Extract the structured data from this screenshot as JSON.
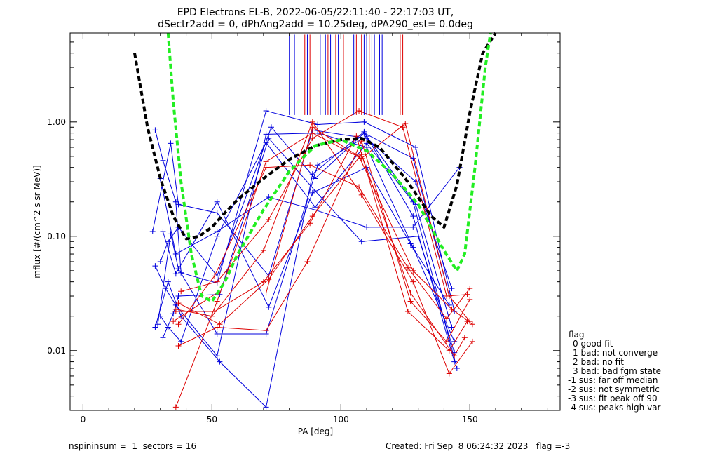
{
  "chart_data": {
    "type": "line",
    "title": "EPD Electrons EL-B, 2022-06-05/22:11:40 - 22:17:03 UT,",
    "subtitle": "dSectr2add = 0, dPhAng2add = 10.25deg, dPA290_est=   0.0deg",
    "xlabel": "PA [deg]",
    "ylabel": "mflux [#/(cm^2 s sr MeV)]",
    "xlim": [
      -5,
      185
    ],
    "ylim": [
      0.003,
      6.0
    ],
    "yscale": "log",
    "x_ticks": [
      0,
      50,
      100,
      150
    ],
    "x_tick_labels": [
      "0",
      "50",
      "100",
      "150"
    ],
    "y_ticks": [
      0.01,
      0.1,
      1.0
    ],
    "y_tick_labels": [
      "0.01",
      "0.10",
      "1.00"
    ],
    "grid": false,
    "fits": [
      {
        "color": "#000000",
        "x": [
          20,
          25,
          30,
          35,
          40,
          45,
          50,
          55,
          60,
          70,
          80,
          90,
          100,
          108,
          115,
          125,
          135,
          140,
          145,
          150,
          155,
          160
        ],
        "y": [
          4.0,
          0.9,
          0.32,
          0.15,
          0.095,
          0.1,
          0.12,
          0.16,
          0.21,
          0.32,
          0.47,
          0.62,
          0.7,
          0.72,
          0.6,
          0.32,
          0.15,
          0.12,
          0.28,
          1.2,
          4.0,
          10
        ]
      },
      {
        "color": "#22ee22",
        "x": [
          33,
          35,
          38,
          42,
          46,
          50,
          55,
          60,
          70,
          80,
          90,
          100,
          110,
          120,
          130,
          140,
          145,
          148,
          152,
          156,
          158
        ],
        "y": [
          10,
          1.5,
          0.3,
          0.07,
          0.03,
          0.027,
          0.04,
          0.07,
          0.17,
          0.37,
          0.62,
          0.7,
          0.56,
          0.35,
          0.19,
          0.075,
          0.05,
          0.07,
          0.4,
          3,
          8
        ]
      }
    ],
    "series": [
      {
        "color": "#0000dd",
        "x": [
          28,
          31,
          36,
          38,
          52,
          71,
          91,
          109,
          129,
          144
        ],
        "y": [
          0.85,
          0.46,
          0.2,
          0.048,
          0.039,
          1.25,
          0.95,
          1.0,
          0.6,
          0.022
        ]
      },
      {
        "color": "#0000dd",
        "x": [
          27,
          34,
          37,
          52,
          72,
          89,
          110,
          129,
          143
        ],
        "y": [
          0.11,
          0.65,
          0.19,
          0.16,
          0.045,
          0.85,
          0.72,
          0.3,
          0.035
        ]
      },
      {
        "color": "#0000dd",
        "x": [
          30,
          33,
          37,
          52,
          73,
          90,
          109,
          128,
          142
        ],
        "y": [
          0.06,
          0.09,
          0.12,
          0.045,
          0.9,
          0.32,
          0.8,
          0.48,
          0.03
        ]
      },
      {
        "color": "#0000dd",
        "x": [
          28,
          32,
          36,
          52,
          71,
          91,
          110,
          128,
          144
        ],
        "y": [
          0.055,
          0.035,
          0.025,
          0.009,
          0.78,
          0.8,
          0.6,
          0.08,
          0.012
        ]
      },
      {
        "color": "#0000dd",
        "x": [
          31,
          35,
          37,
          53,
          72,
          90,
          108,
          130,
          144
        ],
        "y": [
          0.013,
          0.021,
          0.03,
          0.031,
          0.72,
          0.25,
          0.09,
          0.1,
          0.0096
        ]
      },
      {
        "color": "#0000dd",
        "x": [
          30,
          33,
          38,
          52,
          71,
          90,
          110,
          128,
          145
        ],
        "y": [
          0.02,
          0.016,
          0.012,
          0.1,
          0.66,
          0.18,
          0.65,
          0.2,
          0.007
        ]
      },
      {
        "color": "#0000dd",
        "x": [
          29,
          34,
          37,
          52,
          71,
          91,
          110,
          129,
          143
        ],
        "y": [
          0.017,
          0.105,
          0.052,
          0.014,
          0.014,
          0.42,
          0.75,
          0.19,
          0.016
        ]
      },
      {
        "color": "#0000dd",
        "x": [
          28,
          33,
          38,
          53,
          71,
          89,
          109,
          128,
          144
        ],
        "y": [
          0.016,
          0.04,
          0.02,
          0.008,
          0.0032,
          0.35,
          0.82,
          0.15,
          0.008
        ]
      },
      {
        "color": "#0000dd",
        "x": [
          31,
          36,
          52,
          72,
          89,
          110,
          127,
          142
        ],
        "y": [
          0.11,
          0.047,
          0.2,
          0.024,
          0.24,
          0.4,
          0.086,
          0.025
        ]
      },
      {
        "color": "#0000dd",
        "x": [
          30,
          36,
          52,
          72,
          90,
          110,
          128,
          146
        ],
        "y": [
          0.32,
          0.07,
          0.11,
          0.22,
          0.17,
          0.12,
          0.12,
          0.4
        ]
      },
      {
        "color": "#dd0000",
        "x": [
          36,
          52,
          71,
          89,
          108,
          125,
          142,
          150
        ],
        "y": [
          0.0032,
          0.027,
          0.45,
          0.8,
          0.48,
          0.97,
          0.03,
          0.018
        ]
      },
      {
        "color": "#dd0000",
        "x": [
          38,
          52,
          72,
          89,
          107,
          124,
          141,
          149
        ],
        "y": [
          0.033,
          0.04,
          0.14,
          0.72,
          1.25,
          0.9,
          0.03,
          0.031
        ]
      },
      {
        "color": "#dd0000",
        "x": [
          37,
          51,
          71,
          88,
          107,
          126,
          141,
          150
        ],
        "y": [
          0.017,
          0.045,
          0.4,
          0.42,
          0.27,
          0.053,
          0.019,
          0.035
        ]
      },
      {
        "color": "#dd0000",
        "x": [
          36,
          50,
          70,
          89,
          108,
          128,
          142,
          151
        ],
        "y": [
          0.023,
          0.02,
          0.075,
          1.0,
          0.23,
          0.04,
          0.0063,
          0.012
        ]
      },
      {
        "color": "#dd0000",
        "x": [
          37,
          52,
          71,
          87,
          108,
          127,
          141,
          150
        ],
        "y": [
          0.011,
          0.016,
          0.015,
          0.06,
          0.68,
          0.027,
          0.012,
          0.028
        ]
      },
      {
        "color": "#dd0000",
        "x": [
          36,
          51,
          70,
          88,
          106,
          126,
          142,
          149
        ],
        "y": [
          0.022,
          0.022,
          0.04,
          0.13,
          0.75,
          0.022,
          0.01,
          0.018
        ]
      },
      {
        "color": "#dd0000",
        "x": [
          35,
          52,
          71,
          89,
          107,
          128,
          143,
          151
        ],
        "y": [
          0.018,
          0.032,
          0.032,
          0.9,
          0.5,
          0.05,
          0.023,
          0.017
        ]
      },
      {
        "color": "#dd0000",
        "x": [
          37,
          53,
          72,
          89,
          108,
          127,
          144,
          148
        ],
        "y": [
          0.026,
          0.017,
          0.042,
          0.15,
          0.52,
          0.032,
          0.009,
          0.013
        ]
      }
    ],
    "pitch_markers": {
      "blue_x": [
        80,
        82,
        87,
        92,
        94,
        96,
        99,
        105,
        109,
        110,
        112,
        113,
        115,
        116
      ],
      "red_x": [
        86,
        88,
        90,
        95,
        98,
        101,
        106,
        108,
        111,
        123,
        124
      ],
      "ytop": 5.8,
      "ybottom": 1.15
    }
  },
  "legend": {
    "title": "flag",
    "items": [
      "0 good fit",
      "1 bad: not converge",
      "2 bad: no fit",
      "3 bad: bad fgm state",
      "-1 sus: far off median",
      "-2 sus: not symmetric",
      "-3 sus: fit peak off 90",
      "-4 sus: peaks high var"
    ]
  },
  "footer": {
    "left": "nspininsum =  1  sectors = 16",
    "right": "Created: Fri Sep  8 06:24:32 2023   flag =-3"
  }
}
